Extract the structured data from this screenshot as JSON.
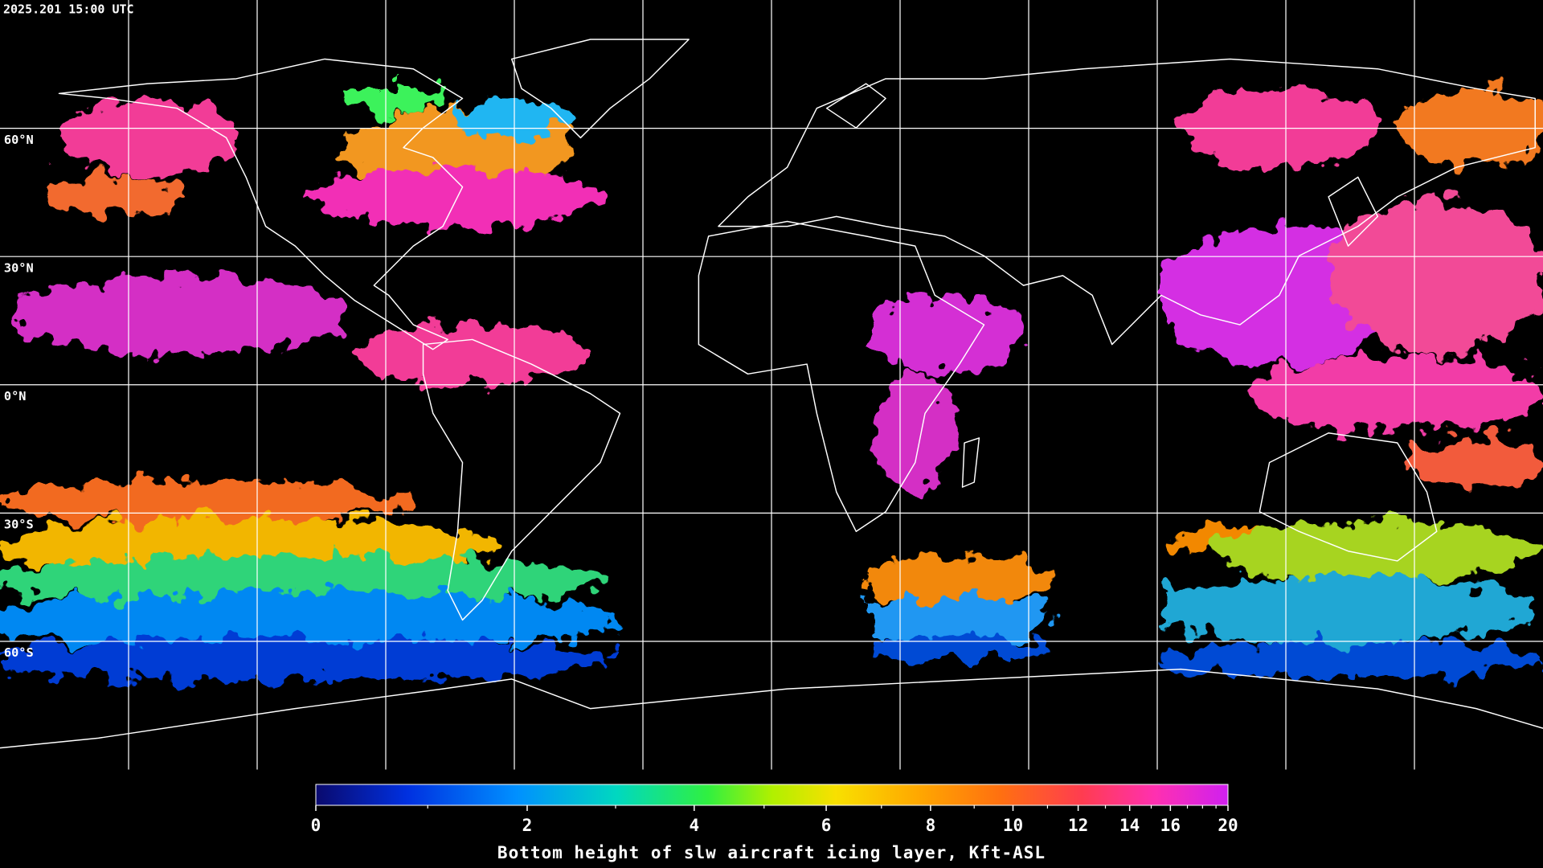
{
  "timestamp": "2025.201 15:00 UTC",
  "map": {
    "lat_lines": [
      {
        "value": 60,
        "label": "60°N"
      },
      {
        "value": 30,
        "label": "30°N"
      },
      {
        "value": 0,
        "label": "0°N"
      },
      {
        "value": -30,
        "label": "30°S"
      },
      {
        "value": -60,
        "label": "60°S"
      }
    ],
    "lon_lines": [
      -150,
      -120,
      -90,
      -60,
      -30,
      0,
      30,
      60,
      90,
      120,
      150
    ]
  },
  "colorbar": {
    "title": "Bottom height of slw aircraft icing layer, Kft-ASL",
    "clim": [
      0,
      20
    ],
    "ticks": [
      0,
      2,
      4,
      6,
      8,
      10,
      12,
      14,
      16,
      20
    ],
    "minor_ticks": [
      1,
      3,
      5,
      7,
      9,
      11,
      13,
      15,
      17,
      18,
      19
    ]
  }
}
